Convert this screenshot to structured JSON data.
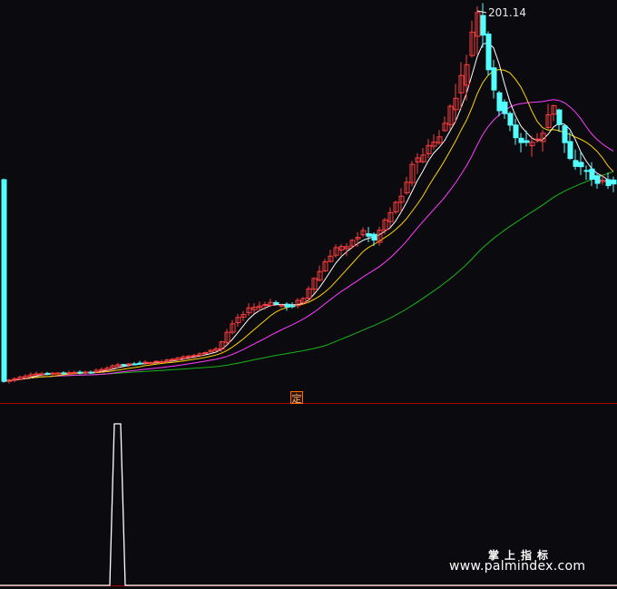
{
  "chart_data": {
    "type": "candlestick",
    "peak_label": "201.14",
    "marker_label": "定",
    "colors": {
      "background": "#0b0a0e",
      "up_candle": "#ff3d3d",
      "down_candle": "#54ffff",
      "ma_short": "#ffffff",
      "ma_mid": "#ffd400",
      "ma_long": "#ff3dff",
      "ma_longest": "#17b517",
      "divider": "#a60000",
      "indicator_line": "#ffffff"
    },
    "indicator": {
      "x": [
        0,
        1
      ],
      "signal_start_x": 0.178,
      "signal_end_x": 0.203,
      "levels": [
        0,
        1
      ]
    }
  },
  "watermark": {
    "cn": "掌上指标",
    "url": "www.palmindex.com"
  }
}
